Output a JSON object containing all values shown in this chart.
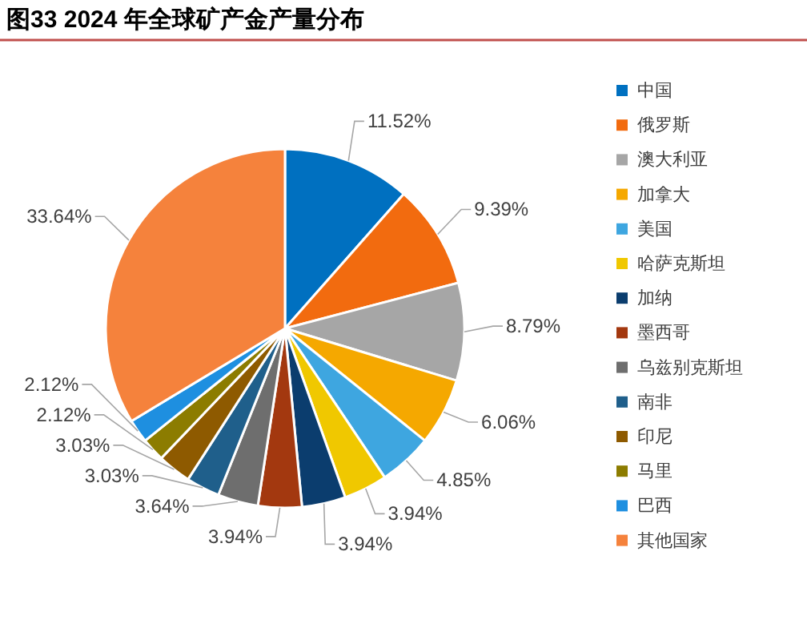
{
  "chart_data": {
    "type": "pie",
    "title": "图33 2024 年全球矿产金产量分布",
    "categories": [
      "中国",
      "俄罗斯",
      "澳大利亚",
      "加拿大",
      "美国",
      "哈萨克斯坦",
      "加纳",
      "墨西哥",
      "乌兹别克斯坦",
      "南非",
      "印尼",
      "马里",
      "巴西",
      "其他国家"
    ],
    "values": [
      11.52,
      9.39,
      8.79,
      6.06,
      4.85,
      3.94,
      3.94,
      3.94,
      3.64,
      3.03,
      3.03,
      2.12,
      2.12,
      33.64
    ],
    "value_labels": [
      "11.52%",
      "9.39%",
      "8.79%",
      "6.06%",
      "4.85%",
      "3.94%",
      "3.94%",
      "3.94%",
      "3.64%",
      "3.03%",
      "3.03%",
      "2.12%",
      "2.12%",
      "33.64%"
    ],
    "colors": [
      "#0070c0",
      "#f26b0f",
      "#a6a6a6",
      "#f5a800",
      "#3ea6e0",
      "#f0c800",
      "#0b3d6e",
      "#a3380f",
      "#6e6e6e",
      "#1f5f8b",
      "#8e5a00",
      "#8c7c00",
      "#1e8fe0",
      "#f5823c"
    ],
    "legend": "right"
  }
}
